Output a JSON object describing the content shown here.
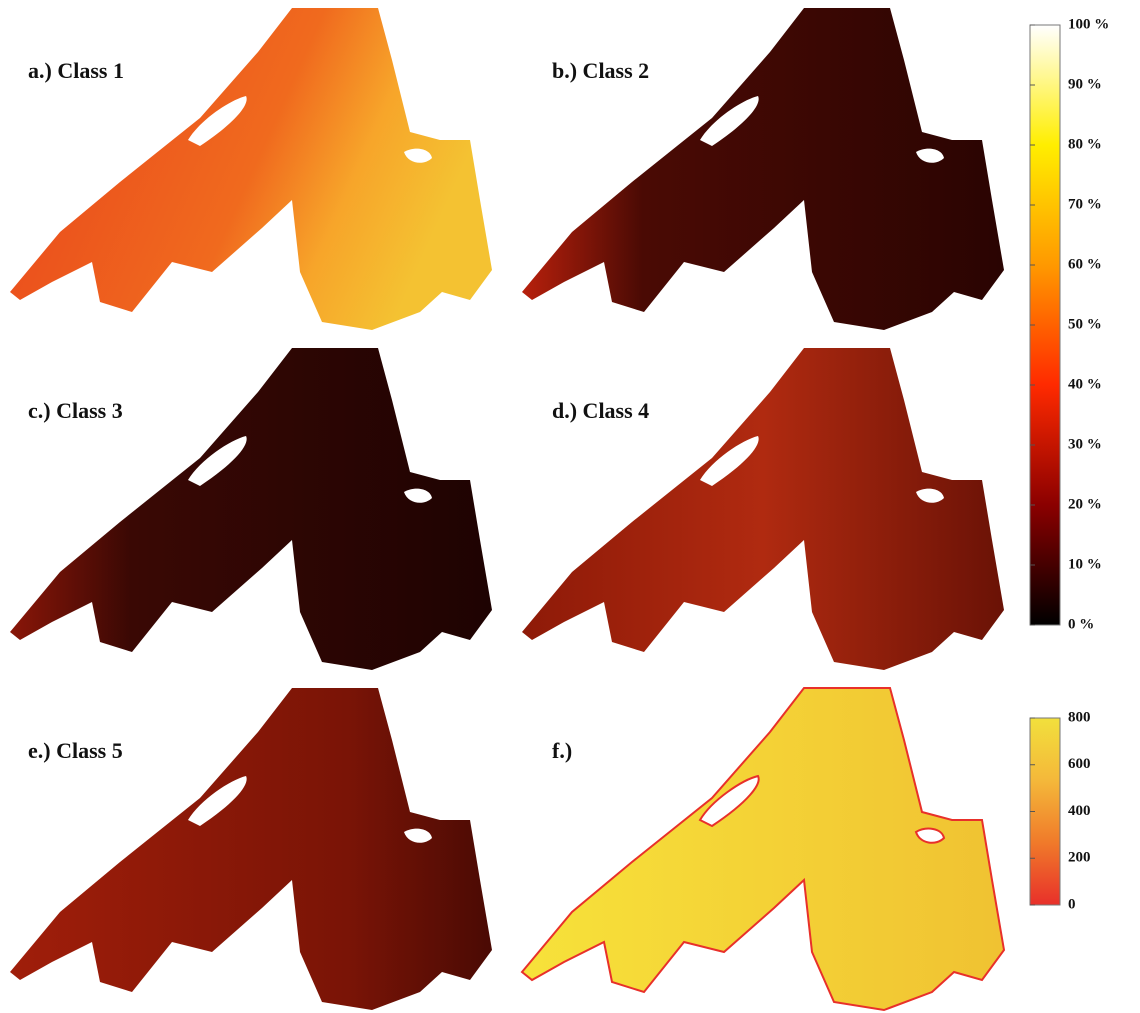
{
  "panels": [
    {
      "label": "a.) Class 1"
    },
    {
      "label": "b.) Class 2"
    },
    {
      "label": "c.) Class 3"
    },
    {
      "label": "d.) Class 4"
    },
    {
      "label": "e.) Class 5"
    },
    {
      "label": "f.)"
    }
  ],
  "colorbars": [
    {
      "range": [
        0,
        100
      ],
      "colors": [
        "#000000",
        "#8b0000",
        "#ff2a00",
        "#ff9900",
        "#ffee00",
        "#ffffff"
      ],
      "ticks": [
        {
          "value": 0,
          "label": "0 %"
        },
        {
          "value": 10,
          "label": "10 %"
        },
        {
          "value": 20,
          "label": "20 %"
        },
        {
          "value": 30,
          "label": "30 %"
        },
        {
          "value": 40,
          "label": "40 %"
        },
        {
          "value": 50,
          "label": "50 %"
        },
        {
          "value": 60,
          "label": "60 %"
        },
        {
          "value": 70,
          "label": "70 %"
        },
        {
          "value": 80,
          "label": "80 %"
        },
        {
          "value": 90,
          "label": "90 %"
        },
        {
          "value": 100,
          "label": "100 %"
        }
      ]
    },
    {
      "range": [
        0,
        800
      ],
      "colors": [
        "#e8302a",
        "#f07a2a",
        "#f4b83a",
        "#f2e03c"
      ],
      "ticks": [
        0,
        200,
        400,
        600,
        800
      ]
    }
  ]
}
